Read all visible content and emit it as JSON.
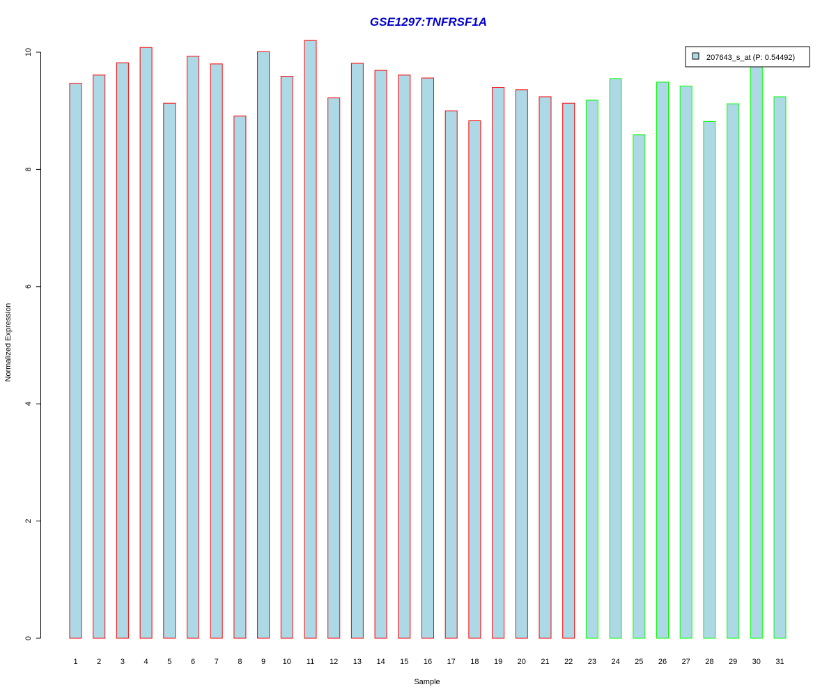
{
  "chart_data": {
    "type": "bar",
    "title": "GSE1297:TNFRSF1A",
    "xlabel": "Sample",
    "ylabel": "Normalized Expression",
    "ylim": [
      0,
      10
    ],
    "yticks": [
      0,
      2,
      4,
      6,
      8,
      10
    ],
    "grid": false,
    "legend_position": "top-right",
    "categories": [
      "1",
      "2",
      "3",
      "4",
      "5",
      "6",
      "7",
      "8",
      "9",
      "10",
      "11",
      "12",
      "13",
      "14",
      "15",
      "16",
      "17",
      "18",
      "19",
      "20",
      "21",
      "22",
      "23",
      "24",
      "25",
      "26",
      "27",
      "28",
      "29",
      "30",
      "31"
    ],
    "series": [
      {
        "name": "207643_s_at (P: 0.54492)",
        "values": [
          9.47,
          9.61,
          9.82,
          10.08,
          9.13,
          9.93,
          9.8,
          8.91,
          10.01,
          9.59,
          10.2,
          9.22,
          9.81,
          9.69,
          9.61,
          9.56,
          9.0,
          8.83,
          9.4,
          9.36,
          9.24,
          9.13,
          9.18,
          9.55,
          8.59,
          9.49,
          9.42,
          8.82,
          9.12,
          9.85,
          9.24
        ]
      }
    ],
    "groups": [
      "red",
      "red",
      "red",
      "red",
      "red",
      "red",
      "red",
      "red",
      "red",
      "red",
      "red",
      "red",
      "red",
      "red",
      "red",
      "red",
      "red",
      "red",
      "red",
      "red",
      "red",
      "red",
      "green",
      "green",
      "green",
      "green",
      "green",
      "green",
      "green",
      "green",
      "green"
    ],
    "colors": {
      "fill": "#add8e6",
      "red_border": "#ff0000",
      "green_border": "#00ff00",
      "title": "#0000cd",
      "axis": "#000000"
    }
  }
}
